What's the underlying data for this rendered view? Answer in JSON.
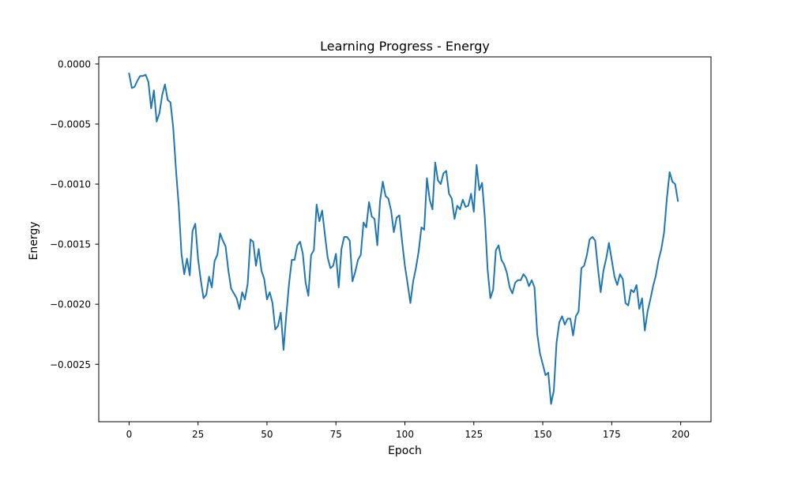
{
  "chart_data": {
    "type": "line",
    "title": "Learning Progress - Energy",
    "xlabel": "Epoch",
    "ylabel": "Energy",
    "xlim": [
      -11,
      211
    ],
    "ylim": [
      -0.002978,
      5.9e-05
    ],
    "xticks": [
      0,
      25,
      50,
      75,
      100,
      125,
      150,
      175,
      200
    ],
    "xtick_labels": [
      "0",
      "25",
      "50",
      "75",
      "100",
      "125",
      "150",
      "175",
      "200"
    ],
    "yticks": [
      0.0,
      -0.0005,
      -0.001,
      -0.0015,
      -0.002,
      -0.0025
    ],
    "ytick_labels": [
      "0.0000",
      "−0.0005",
      "−0.0010",
      "−0.0015",
      "−0.0020",
      "−0.0025"
    ],
    "grid": false,
    "legend": "none",
    "line_color": "#1f77b4",
    "series": [
      {
        "x_start": 0,
        "x_step": 1,
        "values": [
          -8e-05,
          -0.0002,
          -0.00019,
          -0.00014,
          -0.0001,
          -0.0001,
          -9e-05,
          -0.00015,
          -0.00037,
          -0.00022,
          -0.00048,
          -0.00041,
          -0.00026,
          -0.00017,
          -0.0003,
          -0.00032,
          -0.00053,
          -0.00088,
          -0.00118,
          -0.00158,
          -0.00175,
          -0.00162,
          -0.00176,
          -0.00139,
          -0.00133,
          -0.00162,
          -0.0018,
          -0.00195,
          -0.00192,
          -0.00177,
          -0.00186,
          -0.00164,
          -0.00159,
          -0.00141,
          -0.00147,
          -0.00152,
          -0.00172,
          -0.00187,
          -0.00191,
          -0.00195,
          -0.00204,
          -0.0019,
          -0.00196,
          -0.00183,
          -0.00146,
          -0.00148,
          -0.00168,
          -0.00154,
          -0.00172,
          -0.00179,
          -0.00196,
          -0.0019,
          -0.00199,
          -0.00221,
          -0.00218,
          -0.00207,
          -0.00238,
          -0.00209,
          -0.00183,
          -0.00163,
          -0.00163,
          -0.00151,
          -0.00148,
          -0.00158,
          -0.00182,
          -0.00193,
          -0.00159,
          -0.00155,
          -0.00117,
          -0.00131,
          -0.00122,
          -0.00142,
          -0.00161,
          -0.0017,
          -0.00168,
          -0.00158,
          -0.00186,
          -0.00154,
          -0.00144,
          -0.00144,
          -0.00147,
          -0.00181,
          -0.00173,
          -0.00163,
          -0.00159,
          -0.00132,
          -0.00136,
          -0.00115,
          -0.00127,
          -0.00129,
          -0.00151,
          -0.00114,
          -0.00098,
          -0.0011,
          -0.00112,
          -0.00122,
          -0.0014,
          -0.00128,
          -0.00126,
          -0.00148,
          -0.00168,
          -0.00183,
          -0.00199,
          -0.00181,
          -0.0017,
          -0.00156,
          -0.00136,
          -0.00138,
          -0.00095,
          -0.00113,
          -0.00121,
          -0.00082,
          -0.00097,
          -0.001,
          -0.00091,
          -0.00089,
          -0.00108,
          -0.00112,
          -0.00129,
          -0.00118,
          -0.00121,
          -0.00113,
          -0.00119,
          -0.00118,
          -0.00108,
          -0.00123,
          -0.00084,
          -0.00105,
          -0.00099,
          -0.00128,
          -0.00171,
          -0.00195,
          -0.00188,
          -0.00155,
          -0.00151,
          -0.00163,
          -0.00167,
          -0.00174,
          -0.00186,
          -0.00191,
          -0.00182,
          -0.0018,
          -0.0018,
          -0.00175,
          -0.00178,
          -0.00185,
          -0.0018,
          -0.00186,
          -0.00225,
          -0.00241,
          -0.0025,
          -0.00259,
          -0.00257,
          -0.00283,
          -0.00272,
          -0.00232,
          -0.00215,
          -0.0021,
          -0.00217,
          -0.00212,
          -0.00212,
          -0.00226,
          -0.0021,
          -0.00206,
          -0.0017,
          -0.00168,
          -0.00159,
          -0.00146,
          -0.00144,
          -0.00147,
          -0.0017,
          -0.0019,
          -0.00172,
          -0.00162,
          -0.00149,
          -0.00163,
          -0.00177,
          -0.00184,
          -0.00175,
          -0.00179,
          -0.00199,
          -0.00201,
          -0.00188,
          -0.0019,
          -0.00184,
          -0.00204,
          -0.00195,
          -0.00222,
          -0.00206,
          -0.00196,
          -0.00185,
          -0.00176,
          -0.00163,
          -0.00154,
          -0.0014,
          -0.00112,
          -0.0009,
          -0.00098,
          -0.001,
          -0.00114
        ]
      }
    ]
  }
}
